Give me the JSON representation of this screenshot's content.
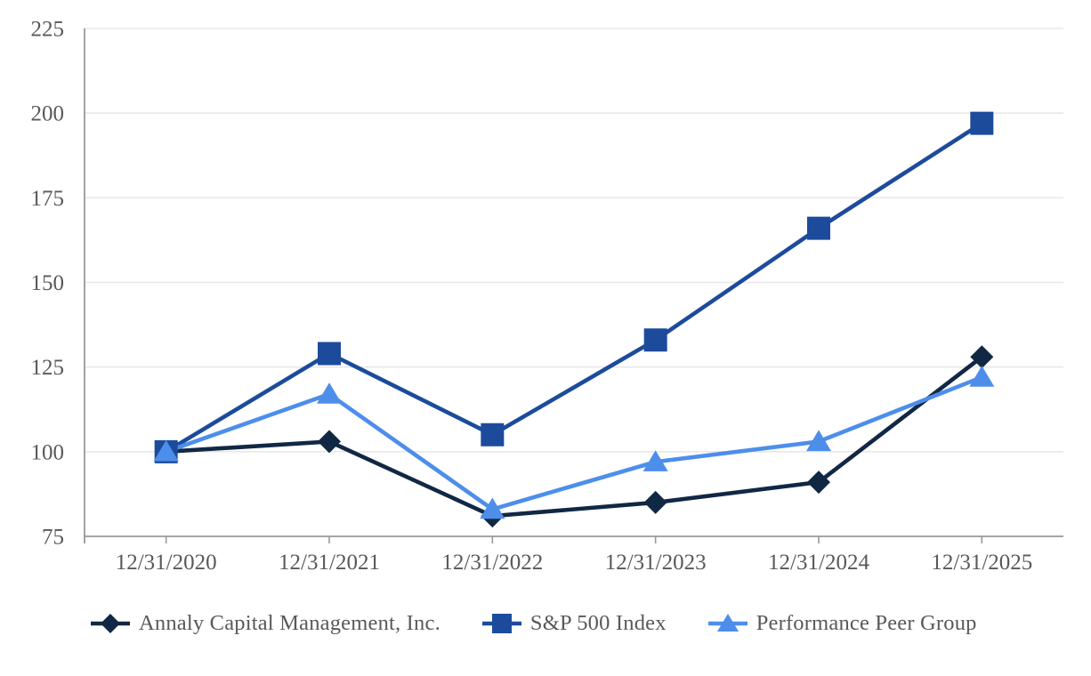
{
  "chart_data": {
    "type": "line",
    "title": "",
    "categories": [
      "12/31/2020",
      "12/31/2021",
      "12/31/2022",
      "12/31/2023",
      "12/31/2024",
      "12/31/2025"
    ],
    "y_axis": {
      "min": 75,
      "max": 225,
      "step": 25,
      "tick_labels": [
        "75",
        "100",
        "125",
        "150",
        "175",
        "200",
        "225"
      ]
    },
    "xlabel": "",
    "ylabel": "",
    "ylim": [
      75,
      225
    ],
    "grid": true,
    "legend_position": "bottom",
    "series": [
      {
        "name": "Annaly Capital Management, Inc.",
        "marker": "diamond",
        "color": "#112844",
        "values": [
          100,
          103,
          81,
          85,
          91,
          128
        ]
      },
      {
        "name": "S&P 500 Index",
        "marker": "square",
        "color": "#1C4B9C",
        "values": [
          100,
          129,
          105,
          133,
          166,
          197
        ]
      },
      {
        "name": "Performance Peer Group",
        "marker": "triangle",
        "color": "#4D8EEA",
        "values": [
          100,
          117,
          83,
          97,
          103,
          122
        ]
      }
    ],
    "colors": {
      "gridline": "#E8E8E8",
      "axis": "#999999",
      "tick_label": "#595959"
    }
  }
}
